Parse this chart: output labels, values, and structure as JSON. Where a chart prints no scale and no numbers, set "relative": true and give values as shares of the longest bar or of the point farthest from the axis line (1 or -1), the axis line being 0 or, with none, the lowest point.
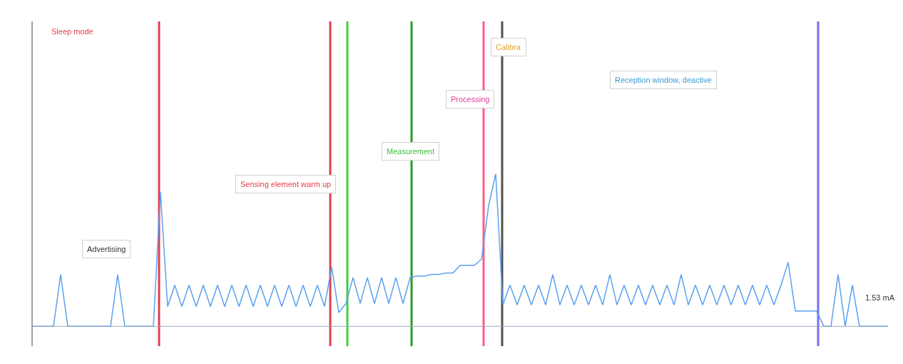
{
  "chart_data": {
    "type": "line",
    "relative": true,
    "color": "#5aa0f0",
    "categories": [
      null,
      null,
      null,
      null,
      null,
      null,
      null,
      null,
      null,
      null,
      null,
      null,
      null,
      null,
      null,
      null,
      null,
      null,
      null,
      null,
      null,
      null,
      null,
      null,
      null,
      null,
      null,
      null,
      null,
      null,
      null,
      null,
      null,
      null,
      null,
      null,
      null,
      null,
      null,
      null,
      null,
      null,
      null,
      null,
      null,
      null,
      null,
      null,
      null,
      null,
      null,
      null,
      null,
      null,
      null,
      null,
      null,
      null,
      null,
      null,
      null,
      null,
      null,
      null,
      null,
      null,
      null,
      null,
      null,
      null,
      null,
      null,
      null,
      null,
      null,
      null,
      null,
      null,
      null,
      null,
      null,
      null,
      null,
      null,
      null,
      null,
      null,
      null,
      null,
      null,
      null,
      null,
      null,
      null,
      null,
      null,
      null,
      null,
      null,
      null,
      null,
      null,
      null,
      null,
      null,
      null,
      null,
      null,
      null,
      null,
      null,
      null,
      null,
      null,
      null,
      null,
      null,
      null,
      null,
      null,
      null
    ],
    "values": [
      0,
      0,
      0,
      0,
      0.34,
      0,
      0,
      0,
      0,
      0,
      0,
      0,
      0.34,
      0,
      0,
      0,
      0,
      0,
      0.88,
      0.13,
      0.27,
      0.13,
      0.27,
      0.13,
      0.27,
      0.13,
      0.27,
      0.13,
      0.27,
      0.13,
      0.27,
      0.13,
      0.27,
      0.13,
      0.27,
      0.13,
      0.27,
      0.13,
      0.27,
      0.13,
      0.27,
      0.13,
      0.39,
      0.09,
      0.15,
      0.32,
      0.15,
      0.32,
      0.15,
      0.32,
      0.15,
      0.32,
      0.15,
      0.32,
      0.33,
      0.33,
      0.34,
      0.34,
      0.35,
      0.35,
      0.4,
      0.4,
      0.4,
      0.44,
      0.79,
      1,
      0.14,
      0.27,
      0.14,
      0.27,
      0.14,
      0.27,
      0.14,
      0.34,
      0.14,
      0.27,
      0.14,
      0.27,
      0.14,
      0.27,
      0.14,
      0.34,
      0.14,
      0.27,
      0.14,
      0.27,
      0.14,
      0.27,
      0.14,
      0.27,
      0.14,
      0.34,
      0.14,
      0.27,
      0.14,
      0.27,
      0.14,
      0.27,
      0.14,
      0.27,
      0.14,
      0.27,
      0.14,
      0.27,
      0.14,
      0.27,
      0.42,
      0.1,
      0.1,
      0.1,
      0.1,
      0,
      0,
      0.34,
      0,
      0.27,
      0,
      0,
      0,
      0,
      0
    ],
    "annotations": [
      "Sleep mode",
      "Advertising",
      "Sensing element warm up",
      "Measurement",
      "Processing",
      "Calibra",
      "Reception window, deactive",
      "1.53 mA"
    ],
    "grid": false
  }
}
